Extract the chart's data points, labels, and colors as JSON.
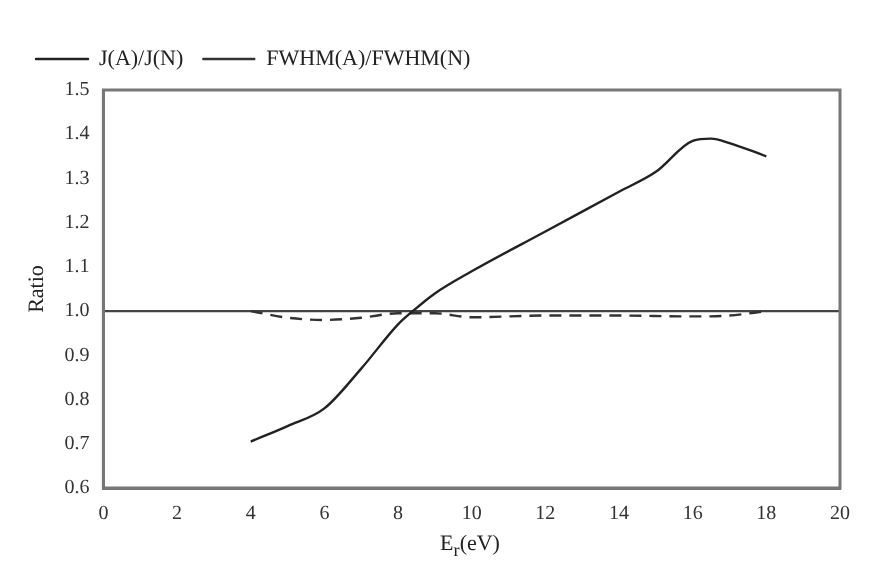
{
  "chart_data": {
    "type": "line",
    "xlabel": "E$_{r}$(eV)",
    "ylabel": "Ratio",
    "xlim": [
      0,
      20
    ],
    "xticks": [
      0,
      2,
      4,
      6,
      8,
      10,
      12,
      14,
      16,
      18,
      20
    ],
    "ylim": [
      0.6,
      1.5
    ],
    "yticks": [
      0.6,
      0.7,
      0.8,
      0.9,
      {
        "value": 1,
        "label": "1.0"
      },
      1.1,
      1.2,
      1.3,
      1.4,
      1.5
    ],
    "grid": false,
    "legend": "top left",
    "marker": "none",
    "ref_lines": [
      {
        "axis": "y",
        "value": 1.0,
        "color": "#444444",
        "line_style": "solid"
      }
    ],
    "series": [
      {
        "name": "J(A)/J(N)",
        "color": "#222222",
        "line_style": "solid",
        "x": [
          4,
          5,
          6,
          7,
          8,
          8.4,
          9,
          10,
          12,
          14,
          15,
          16,
          16.5,
          17,
          18
        ],
        "values": [
          0.705,
          0.74,
          0.78,
          0.87,
          0.97,
          1.0,
          1.04,
          1.09,
          1.18,
          1.27,
          1.315,
          1.385,
          1.39,
          1.38,
          1.35
        ]
      },
      {
        "name": "FWHM(A)/FWHM(N)",
        "color": "#333333",
        "line_style": "dashed",
        "x": [
          4,
          5,
          6,
          7,
          8,
          9,
          10,
          12,
          14,
          16,
          17,
          18
        ],
        "values": [
          1.0,
          0.985,
          0.98,
          0.985,
          0.995,
          0.995,
          0.986,
          0.99,
          0.99,
          0.988,
          0.99,
          1.0
        ]
      }
    ]
  }
}
